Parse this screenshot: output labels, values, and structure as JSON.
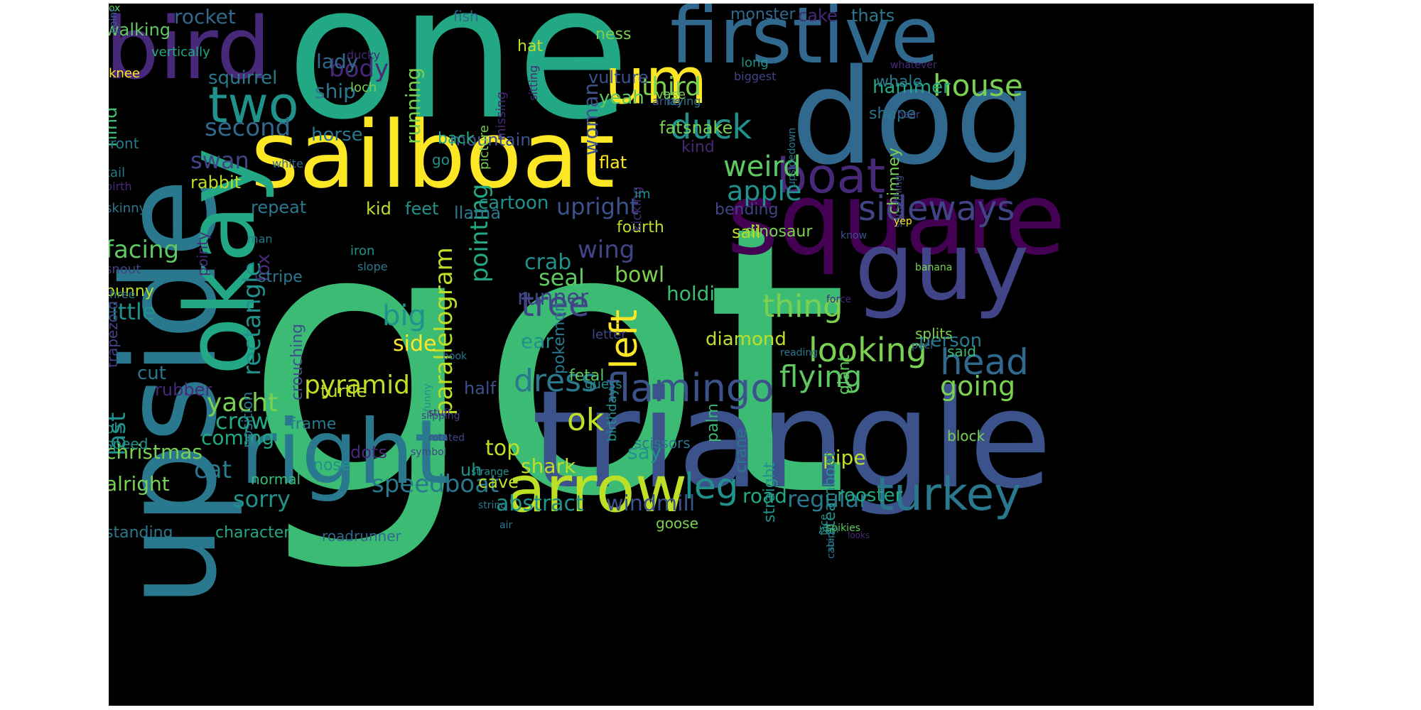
{
  "words": [
    {
      "text": "got",
      "color": "#3cbb75",
      "rotate": false
    },
    {
      "text": "one",
      "color": "#22a884",
      "rotate": false
    },
    {
      "text": "triangle",
      "color": "#3b528b",
      "rotate": false
    },
    {
      "text": "sailboat",
      "color": "#fde725",
      "rotate": false
    },
    {
      "text": "upside",
      "color": "#2a788e",
      "rotate": true
    },
    {
      "text": "dog",
      "color": "#31688e",
      "rotate": false
    },
    {
      "text": "square",
      "color": "#440154",
      "rotate": false
    },
    {
      "text": "guy",
      "color": "#414487",
      "rotate": false
    },
    {
      "text": "okay",
      "color": "#22a884",
      "rotate": true
    },
    {
      "text": "right",
      "color": "#2a788e",
      "rotate": false
    },
    {
      "text": "bird",
      "color": "#482878",
      "rotate": false
    },
    {
      "text": "firstive",
      "color": "#31688e",
      "rotate": false
    },
    {
      "text": "arrow",
      "color": "#bddf26",
      "rotate": false
    },
    {
      "text": "um",
      "color": "#fde725",
      "rotate": false
    },
    {
      "text": "two",
      "color": "#21918c",
      "rotate": false
    },
    {
      "text": "boat",
      "color": "#482878",
      "rotate": false
    },
    {
      "text": "turkey",
      "color": "#2a788e",
      "rotate": false
    },
    {
      "text": "sideways",
      "color": "#414487",
      "rotate": false
    },
    {
      "text": "flamingo",
      "color": "#3b528b",
      "rotate": false
    },
    {
      "text": "head",
      "color": "#31688e",
      "rotate": false
    },
    {
      "text": "looking",
      "color": "#7ad151",
      "rotate": false
    },
    {
      "text": "flying",
      "color": "#5ec962",
      "rotate": false
    },
    {
      "text": "leg",
      "color": "#21918c",
      "rotate": false
    },
    {
      "text": "dress",
      "color": "#2a788e",
      "rotate": false
    },
    {
      "text": "tree",
      "color": "#414487",
      "rotate": false
    },
    {
      "text": "left",
      "color": "#fde725",
      "rotate": true
    },
    {
      "text": "thing",
      "color": "#7ad151",
      "rotate": false
    },
    {
      "text": "duck",
      "color": "#21918c",
      "rotate": false
    },
    {
      "text": "weird",
      "color": "#5ec962",
      "rotate": false
    },
    {
      "text": "going",
      "color": "#7ad151",
      "rotate": false
    },
    {
      "text": "house",
      "color": "#7ad151",
      "rotate": false
    },
    {
      "text": "apple",
      "color": "#21918c",
      "rotate": false
    },
    {
      "text": "yacht",
      "color": "#7ad151",
      "rotate": false
    },
    {
      "text": "speedboat",
      "color": "#2a788e",
      "rotate": false
    },
    {
      "text": "parallelogram",
      "color": "#bddf26",
      "rotate": true
    },
    {
      "text": "pyramid",
      "color": "#bddf26",
      "rotate": false
    },
    {
      "text": "rectangle",
      "color": "#21918c",
      "rotate": true
    },
    {
      "text": "ok",
      "color": "#bddf26",
      "rotate": false
    },
    {
      "text": "wing",
      "color": "#414487",
      "rotate": false
    },
    {
      "text": "third",
      "color": "#7ad151",
      "rotate": false
    },
    {
      "text": "big",
      "color": "#21918c",
      "rotate": false
    },
    {
      "text": "second",
      "color": "#31688e",
      "rotate": false
    },
    {
      "text": "facing",
      "color": "#5ec962",
      "rotate": false
    },
    {
      "text": "little",
      "color": "#21918c",
      "rotate": false
    },
    {
      "text": "crow",
      "color": "#22a884",
      "rotate": false
    },
    {
      "text": "cat",
      "color": "#2a788e",
      "rotate": false
    },
    {
      "text": "sorry",
      "color": "#21918c",
      "rotate": false
    },
    {
      "text": "last",
      "color": "#21918c",
      "rotate": true
    },
    {
      "text": "upright",
      "color": "#3b528b",
      "rotate": false
    },
    {
      "text": "regular",
      "color": "#2a788e",
      "rotate": false
    },
    {
      "text": "abstract",
      "color": "#21918c",
      "rotate": false
    },
    {
      "text": "windmill",
      "color": "#3b528b",
      "rotate": false
    },
    {
      "text": "swan",
      "color": "#414487",
      "rotate": false
    },
    {
      "text": "pointing",
      "color": "#22a884",
      "rotate": true
    },
    {
      "text": "body",
      "color": "#482878",
      "rotate": false
    },
    {
      "text": "crab",
      "color": "#21918c",
      "rotate": false
    },
    {
      "text": "seal",
      "color": "#5ec962",
      "rotate": false
    },
    {
      "text": "runner",
      "color": "#414487",
      "rotate": false
    },
    {
      "text": "top",
      "color": "#bddf26",
      "rotate": false
    },
    {
      "text": "say",
      "color": "#21918c",
      "rotate": false
    },
    {
      "text": "shark",
      "color": "#bddf26",
      "rotate": false
    },
    {
      "text": "bowl",
      "color": "#7ad151",
      "rotate": false
    },
    {
      "text": "holding",
      "color": "#3cbb75",
      "rotate": false
    },
    {
      "text": "diamond",
      "color": "#bddf26",
      "rotate": false
    },
    {
      "text": "person",
      "color": "#2a788e",
      "rotate": false
    },
    {
      "text": "road",
      "color": "#22a884",
      "rotate": false
    },
    {
      "text": "rooster",
      "color": "#22a884",
      "rotate": false
    },
    {
      "text": "pipe",
      "color": "#bddf26",
      "rotate": false
    },
    {
      "text": "coming",
      "color": "#22a884",
      "rotate": false
    },
    {
      "text": "alright",
      "color": "#7ad151",
      "rotate": false
    },
    {
      "text": "christmas",
      "color": "#7ad151",
      "rotate": false
    },
    {
      "text": "ear",
      "color": "#21918c",
      "rotate": false
    },
    {
      "text": "side",
      "color": "#fde725",
      "rotate": false
    },
    {
      "text": "woman",
      "color": "#3b528b",
      "rotate": true
    },
    {
      "text": "ship",
      "color": "#2a788e",
      "rotate": false
    },
    {
      "text": "lady",
      "color": "#31688e",
      "rotate": false
    },
    {
      "text": "running",
      "color": "#7ad151",
      "rotate": true
    },
    {
      "text": "rocket",
      "color": "#31688e",
      "rotate": false
    },
    {
      "text": "walking",
      "color": "#5ec962",
      "rotate": false
    },
    {
      "text": "hind",
      "color": "#3cbb75",
      "rotate": true
    },
    {
      "text": "horse",
      "color": "#2a788e",
      "rotate": false
    },
    {
      "text": "yeah",
      "color": "#5ec962",
      "rotate": false
    },
    {
      "text": "hammer",
      "color": "#22a884",
      "rotate": false
    },
    {
      "text": "squirrel",
      "color": "#2a788e",
      "rotate": false
    },
    {
      "text": "rabbit",
      "color": "#bddf26",
      "rotate": false
    },
    {
      "text": "cartoon",
      "color": "#21918c",
      "rotate": false
    },
    {
      "text": "llama",
      "color": "#2a788e",
      "rotate": false
    },
    {
      "text": "kid",
      "color": "#bddf26",
      "rotate": false
    },
    {
      "text": "feet",
      "color": "#21918c",
      "rotate": false
    },
    {
      "text": "repeat",
      "color": "#2a788e",
      "rotate": false
    },
    {
      "text": "fox",
      "color": "#482878",
      "rotate": true
    },
    {
      "text": "cut",
      "color": "#2a788e",
      "rotate": false
    },
    {
      "text": "rubber",
      "color": "#482878",
      "rotate": false
    },
    {
      "text": "half",
      "color": "#3b528b",
      "rotate": false
    },
    {
      "text": "uh",
      "color": "#21918c",
      "rotate": false
    },
    {
      "text": "cave",
      "color": "#bddf26",
      "rotate": false
    },
    {
      "text": "dots",
      "color": "#482878",
      "rotate": false
    },
    {
      "text": "turtle",
      "color": "#bddf26",
      "rotate": false
    },
    {
      "text": "frame",
      "color": "#2a788e",
      "rotate": false
    },
    {
      "text": "nose",
      "color": "#21918c",
      "rotate": false
    },
    {
      "text": "mountain",
      "color": "#3b528b",
      "rotate": false
    },
    {
      "text": "back",
      "color": "#22a884",
      "rotate": false
    },
    {
      "text": "fat",
      "color": "#7ad151",
      "rotate": false
    },
    {
      "text": "snake",
      "color": "#7ad151",
      "rotate": false
    },
    {
      "text": "kind",
      "color": "#482878",
      "rotate": false
    },
    {
      "text": "flat",
      "color": "#fde725",
      "rotate": false
    },
    {
      "text": "fourth",
      "color": "#bddf26",
      "rotate": false
    },
    {
      "text": "bending",
      "color": "#414487",
      "rotate": false
    },
    {
      "text": "sail",
      "color": "#bddf26",
      "rotate": false
    },
    {
      "text": "vulture",
      "color": "#3b528b",
      "rotate": false
    },
    {
      "text": "shape",
      "color": "#2a788e",
      "rotate": false
    },
    {
      "text": "whale",
      "color": "#2a788e",
      "rotate": false
    },
    {
      "text": "ness",
      "color": "#7ad151",
      "rotate": false
    },
    {
      "text": "hat",
      "color": "#bddf26",
      "rotate": false
    },
    {
      "text": "cake",
      "color": "#482878",
      "rotate": false
    },
    {
      "text": "thats",
      "color": "#2a788e",
      "rotate": false
    },
    {
      "text": "monster",
      "color": "#31688e",
      "rotate": false
    },
    {
      "text": "fish",
      "color": "#31688e",
      "rotate": false
    },
    {
      "text": "chimney",
      "color": "#7ad151",
      "rotate": true
    },
    {
      "text": "dinosaur",
      "color": "#7ad151",
      "rotate": false
    },
    {
      "text": "crouching",
      "color": "#3b528b",
      "rotate": true
    },
    {
      "text": "pokemon",
      "color": "#2a788e",
      "rotate": true
    },
    {
      "text": "fetal",
      "color": "#5ec962",
      "rotate": false
    },
    {
      "text": "giant",
      "color": "#5ec962",
      "rotate": true
    },
    {
      "text": "steamboat",
      "color": "#21918c",
      "rotate": true
    },
    {
      "text": "palm",
      "color": "#3cbb75",
      "rotate": true
    },
    {
      "text": "crane",
      "color": "#2a788e",
      "rotate": true
    },
    {
      "text": "straight",
      "color": "#21918c",
      "rotate": true
    },
    {
      "text": "goose",
      "color": "#7ad151",
      "rotate": false
    },
    {
      "text": "splits",
      "color": "#7ad151",
      "rotate": false
    },
    {
      "text": "said",
      "color": "#3cbb75",
      "rotate": false
    },
    {
      "text": "block",
      "color": "#7ad151",
      "rotate": false
    },
    {
      "text": "bunny",
      "color": "#bddf26",
      "rotate": false
    },
    {
      "text": "position",
      "color": "#2a788e",
      "rotate": true
    },
    {
      "text": "standing",
      "color": "#2a788e",
      "rotate": false
    },
    {
      "text": "character",
      "color": "#22a884",
      "rotate": false
    },
    {
      "text": "roadrunner",
      "color": "#31688e",
      "rotate": false
    },
    {
      "text": "normal",
      "color": "#3cbb75",
      "rotate": false
    },
    {
      "text": "oh",
      "color": "#21918c",
      "rotate": false
    },
    {
      "text": "speed",
      "color": "#21918c",
      "rotate": false
    },
    {
      "text": "letter",
      "color": "#414487",
      "rotate": false
    },
    {
      "text": "birthday",
      "color": "#21918c",
      "rotate": true
    },
    {
      "text": "guess",
      "color": "#21918c",
      "rotate": false
    },
    {
      "text": "scissors",
      "color": "#2a788e",
      "rotate": false
    },
    {
      "text": "stripe",
      "color": "#2a788e",
      "rotate": false
    },
    {
      "text": "pointy",
      "color": "#482878",
      "rotate": true
    },
    {
      "text": "trapezoid",
      "color": "#414487",
      "rotate": true
    },
    {
      "text": "front",
      "color": "#2a788e",
      "rotate": false
    },
    {
      "text": "tail",
      "color": "#2a788e",
      "rotate": false
    },
    {
      "text": "skinny",
      "color": "#2a788e",
      "rotate": false
    },
    {
      "text": "snout",
      "color": "#414487",
      "rotate": false
    },
    {
      "text": "three",
      "color": "#2a788e",
      "rotate": false
    },
    {
      "text": "birth",
      "color": "#482878",
      "rotate": false
    },
    {
      "text": "man",
      "color": "#2a788e",
      "rotate": false
    },
    {
      "text": "white",
      "color": "#31688e",
      "rotate": false
    },
    {
      "text": "iron",
      "color": "#21918c",
      "rotate": false
    },
    {
      "text": "slope",
      "color": "#2a788e",
      "rotate": false
    },
    {
      "text": "go",
      "color": "#21918c",
      "rotate": false
    },
    {
      "text": "picture",
      "color": "#7ad151",
      "rotate": true
    },
    {
      "text": "missing",
      "color": "#482878",
      "rotate": true
    },
    {
      "text": "sitting",
      "color": "#482878",
      "rotate": true
    },
    {
      "text": "kicking",
      "color": "#482878",
      "rotate": true
    },
    {
      "text": "im",
      "color": "#21918c",
      "rotate": false
    },
    {
      "text": "arms",
      "color": "#3b528b",
      "rotate": false
    },
    {
      "text": "laying",
      "color": "#2a788e",
      "rotate": false
    },
    {
      "text": "vase",
      "color": "#7ad151",
      "rotate": false
    },
    {
      "text": "loch",
      "color": "#7ad151",
      "rotate": false
    },
    {
      "text": "ducky",
      "color": "#482878",
      "rotate": false
    },
    {
      "text": "vertically",
      "color": "#22a884",
      "rotate": false
    },
    {
      "text": "knee",
      "color": "#fde725",
      "rotate": false
    },
    {
      "text": "long",
      "color": "#21918c",
      "rotate": false
    },
    {
      "text": "biggest",
      "color": "#414487",
      "rotate": false
    },
    {
      "text": "whatever",
      "color": "#482878",
      "rotate": false
    },
    {
      "text": "hear",
      "color": "#414487",
      "rotate": false
    },
    {
      "text": "something",
      "color": "#414487",
      "rotate": true
    },
    {
      "text": "upsidedown",
      "color": "#2a788e",
      "rotate": true
    },
    {
      "text": "yep",
      "color": "#fde725",
      "rotate": false
    },
    {
      "text": "know",
      "color": "#3b528b",
      "rotate": false
    },
    {
      "text": "banana",
      "color": "#7ad151",
      "rotate": false
    },
    {
      "text": "force",
      "color": "#482878",
      "rotate": false
    },
    {
      "text": "peel",
      "color": "#31688e",
      "rotate": false
    },
    {
      "text": "reading",
      "color": "#2a788e",
      "rotate": false
    },
    {
      "text": "book",
      "color": "#2a788e",
      "rotate": false
    },
    {
      "text": "funny",
      "color": "#21918c",
      "rotate": true
    },
    {
      "text": "stuff",
      "color": "#482878",
      "rotate": false
    },
    {
      "text": "slipping",
      "color": "#414487",
      "rotate": false
    },
    {
      "text": "rotated",
      "color": "#414487",
      "rotate": false
    },
    {
      "text": "symbol",
      "color": "#414487",
      "rotate": false
    },
    {
      "text": "strange",
      "color": "#21918c",
      "rotate": false
    },
    {
      "text": "string",
      "color": "#2a788e",
      "rotate": false
    },
    {
      "text": "air",
      "color": "#2a788e",
      "rotate": false
    },
    {
      "text": "face",
      "color": "#21918c",
      "rotate": true
    },
    {
      "text": "spikies",
      "color": "#5ec962",
      "rotate": false
    },
    {
      "text": "cabin",
      "color": "#2a788e",
      "rotate": true
    },
    {
      "text": "step",
      "color": "#2a788e",
      "rotate": true
    },
    {
      "text": "looks",
      "color": "#482878",
      "rotate": false
    },
    {
      "text": "barn",
      "color": "#21918c",
      "rotate": false
    },
    {
      "text": "ox",
      "color": "#5ec962",
      "rotate": false
    },
    {
      "text": "point",
      "color": "#31688e",
      "rotate": true
    }
  ]
}
